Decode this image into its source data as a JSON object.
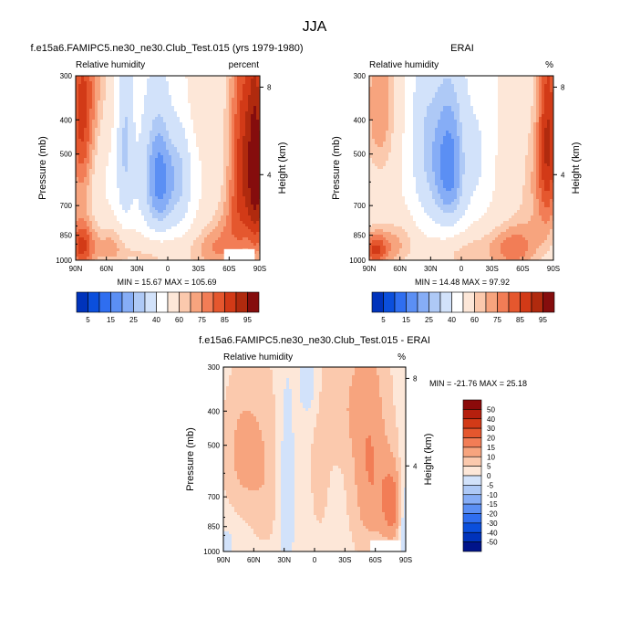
{
  "page_title": "JJA",
  "chart_data": [
    {
      "type": "heatmap",
      "title": "f.e15a6.FAMIPC5.ne30_ne30.Club_Test.015 (yrs 1979-1980)",
      "field_label": "Relative humidity",
      "units_label": "percent",
      "xlabel": "",
      "ylabel": "Pressure (mb)",
      "right_axis_label": "Height (km)",
      "x_ticks": [
        "90N",
        "60N",
        "30N",
        "0",
        "30S",
        "60S",
        "90S"
      ],
      "y_ticks": [
        "300",
        "400",
        "500",
        "700",
        "850",
        "1000"
      ],
      "y_ticks_values": [
        300,
        400,
        500,
        700,
        850,
        1000
      ],
      "right_ticks": [
        "8",
        "4"
      ],
      "right_ticks_values": [
        8,
        4
      ],
      "ylim": [
        1000,
        300
      ],
      "xlim": [
        90,
        -90
      ],
      "min_max_text": "MIN = 15.67   MAX = 105.69",
      "min": 15.67,
      "max": 105.69,
      "colorbar_labels": [
        "5",
        "15",
        "25",
        "40",
        "60",
        "75",
        "85",
        "95"
      ],
      "colorbar_colors": [
        "#0033bb",
        "#0b4fdc",
        "#2f6ef0",
        "#5b8ff4",
        "#86adf6",
        "#aec9f6",
        "#d2e2fa",
        "#ffffff",
        "#fde7d8",
        "#fbc9ad",
        "#f7a47e",
        "#f27d56",
        "#e5572e",
        "#d23a17",
        "#b02a0e",
        "#850d0d"
      ]
    },
    {
      "type": "heatmap",
      "title": "ERAI",
      "field_label": "Relative humidity",
      "units_label": "%",
      "xlabel": "",
      "ylabel": "Pressure (mb)",
      "right_axis_label": "Height (km)",
      "x_ticks": [
        "90N",
        "60N",
        "30N",
        "0",
        "30S",
        "60S",
        "90S"
      ],
      "y_ticks": [
        "300",
        "400",
        "500",
        "700",
        "850",
        "1000"
      ],
      "y_ticks_values": [
        300,
        400,
        500,
        700,
        850,
        1000
      ],
      "right_ticks": [
        "8",
        "4"
      ],
      "right_ticks_values": [
        8,
        4
      ],
      "ylim": [
        1000,
        300
      ],
      "xlim": [
        90,
        -90
      ],
      "min_max_text": "MIN = 14.48   MAX = 97.92",
      "min": 14.48,
      "max": 97.92,
      "colorbar_labels": [
        "5",
        "15",
        "25",
        "40",
        "60",
        "75",
        "85",
        "95"
      ],
      "colorbar_colors": [
        "#0033bb",
        "#0b4fdc",
        "#2f6ef0",
        "#5b8ff4",
        "#86adf6",
        "#aec9f6",
        "#d2e2fa",
        "#ffffff",
        "#fde7d8",
        "#fbc9ad",
        "#f7a47e",
        "#f27d56",
        "#e5572e",
        "#d23a17",
        "#b02a0e",
        "#850d0d"
      ]
    },
    {
      "type": "heatmap",
      "title": "f.e15a6.FAMIPC5.ne30_ne30.Club_Test.015 - ERAI",
      "field_label": "Relative humidity",
      "units_label": "%",
      "xlabel": "",
      "ylabel": "Pressure (mb)",
      "right_axis_label": "Height (km)",
      "x_ticks": [
        "90N",
        "60N",
        "30N",
        "0",
        "30S",
        "60S",
        "90S"
      ],
      "y_ticks": [
        "300",
        "400",
        "500",
        "700",
        "850",
        "1000"
      ],
      "y_ticks_values": [
        300,
        400,
        500,
        700,
        850,
        1000
      ],
      "right_ticks": [
        "8",
        "4"
      ],
      "right_ticks_values": [
        8,
        4
      ],
      "ylim": [
        1000,
        300
      ],
      "xlim": [
        90,
        -90
      ],
      "min_max_text": "MIN = -21.76   MAX =  25.18",
      "min": -21.76,
      "max": 25.18,
      "colorbar_labels": [
        "50",
        "40",
        "30",
        "20",
        "15",
        "10",
        "5",
        "0",
        "-5",
        "-10",
        "-15",
        "-20",
        "-30",
        "-40",
        "-50"
      ],
      "colorbar_colors": [
        "#8b0a0a",
        "#b51f0d",
        "#d23a17",
        "#e5572e",
        "#f27d56",
        "#f7a47e",
        "#fbc9ad",
        "#fde7d8",
        "#d2e2fa",
        "#aec9f6",
        "#86adf6",
        "#5b8ff4",
        "#2f6ef0",
        "#0b4fdc",
        "#0033bb",
        "#00148a"
      ]
    }
  ]
}
